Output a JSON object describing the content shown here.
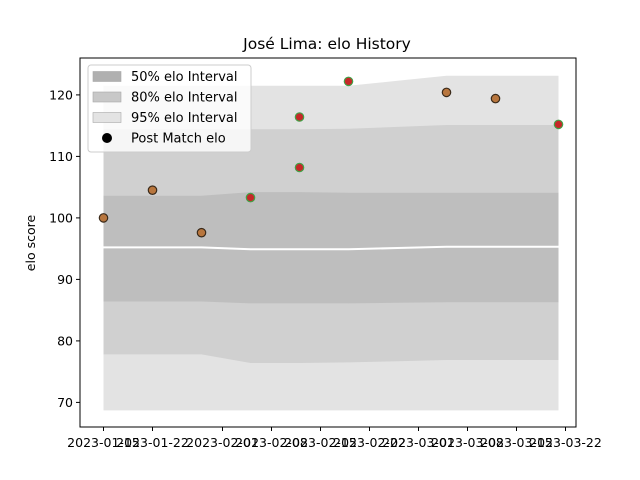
{
  "chart_data": {
    "type": "area",
    "title": "José Lima: elo History",
    "xlabel": "",
    "ylabel": "elo score",
    "x_ticks": [
      "2023-01-15",
      "2023-01-22",
      "2023-02-01",
      "2023-02-08",
      "2023-02-15",
      "2023-02-22",
      "2023-03-01",
      "2023-03-08",
      "2023-03-15",
      "2023-03-22"
    ],
    "y_ticks": [
      70,
      80,
      90,
      100,
      110,
      120
    ],
    "ylim": [
      66,
      126
    ],
    "x": [
      "2023-01-15",
      "2023-01-22",
      "2023-01-29",
      "2023-02-05",
      "2023-02-12",
      "2023-02-19",
      "2023-02-26",
      "2023-03-05",
      "2023-03-12",
      "2023-03-21"
    ],
    "bands": [
      {
        "name": "95% elo Interval",
        "color": "#e3e3e3",
        "lower": [
          68.7,
          68.7,
          68.7,
          68.7,
          68.7,
          68.7,
          68.7,
          68.7,
          68.7,
          68.7
        ],
        "upper": [
          121.5,
          121.5,
          121.5,
          121.5,
          121.5,
          121.5,
          122.3,
          123.1,
          123.1,
          123.1
        ]
      },
      {
        "name": "80% elo Interval",
        "color": "#d0d0d0",
        "lower": [
          77.8,
          77.8,
          77.8,
          76.4,
          76.4,
          76.5,
          76.7,
          76.9,
          76.9,
          76.9
        ],
        "upper": [
          114.4,
          114.4,
          114.4,
          114.4,
          114.4,
          114.5,
          114.8,
          115.1,
          115.1,
          115.1
        ]
      },
      {
        "name": "50% elo Interval",
        "color": "#bebebe",
        "lower": [
          86.4,
          86.4,
          86.4,
          86.1,
          86.1,
          86.1,
          86.2,
          86.3,
          86.3,
          86.3
        ],
        "upper": [
          103.6,
          103.6,
          103.6,
          104.2,
          104.2,
          104.1,
          104.1,
          104.1,
          104.1,
          104.1
        ]
      }
    ],
    "mean_line": {
      "values": [
        95.2,
        95.2,
        95.2,
        94.9,
        94.9,
        94.9,
        95.1,
        95.3,
        95.3,
        95.3
      ],
      "color": "#ffffff"
    },
    "points": {
      "name": "Post Match elo",
      "x": [
        "2023-01-15",
        "2023-01-22",
        "2023-01-29",
        "2023-02-05",
        "2023-02-12",
        "2023-02-12",
        "2023-02-19",
        "2023-03-05",
        "2023-03-12",
        "2023-03-21"
      ],
      "y": [
        100.0,
        104.5,
        97.6,
        103.3,
        108.2,
        116.4,
        122.2,
        120.4,
        119.4,
        115.2
      ],
      "kind": [
        "brown",
        "brown",
        "brown",
        "green",
        "green",
        "green",
        "green",
        "brown",
        "brown",
        "green"
      ]
    },
    "colors": {
      "brown_fill": "#b8763e",
      "brown_edge": "#3a2a1a",
      "green_fill": "#c62828",
      "green_edge": "#43a047"
    },
    "legend": {
      "position": "upper-left",
      "items": [
        {
          "label": "50% elo Interval",
          "kind": "patch",
          "color": "#b0b0b0"
        },
        {
          "label": "80% elo Interval",
          "kind": "patch",
          "color": "#c8c8c8"
        },
        {
          "label": "95% elo Interval",
          "kind": "patch",
          "color": "#e3e3e3"
        },
        {
          "label": "Post Match elo",
          "kind": "marker",
          "color": "#000000"
        }
      ]
    },
    "grid": false
  }
}
